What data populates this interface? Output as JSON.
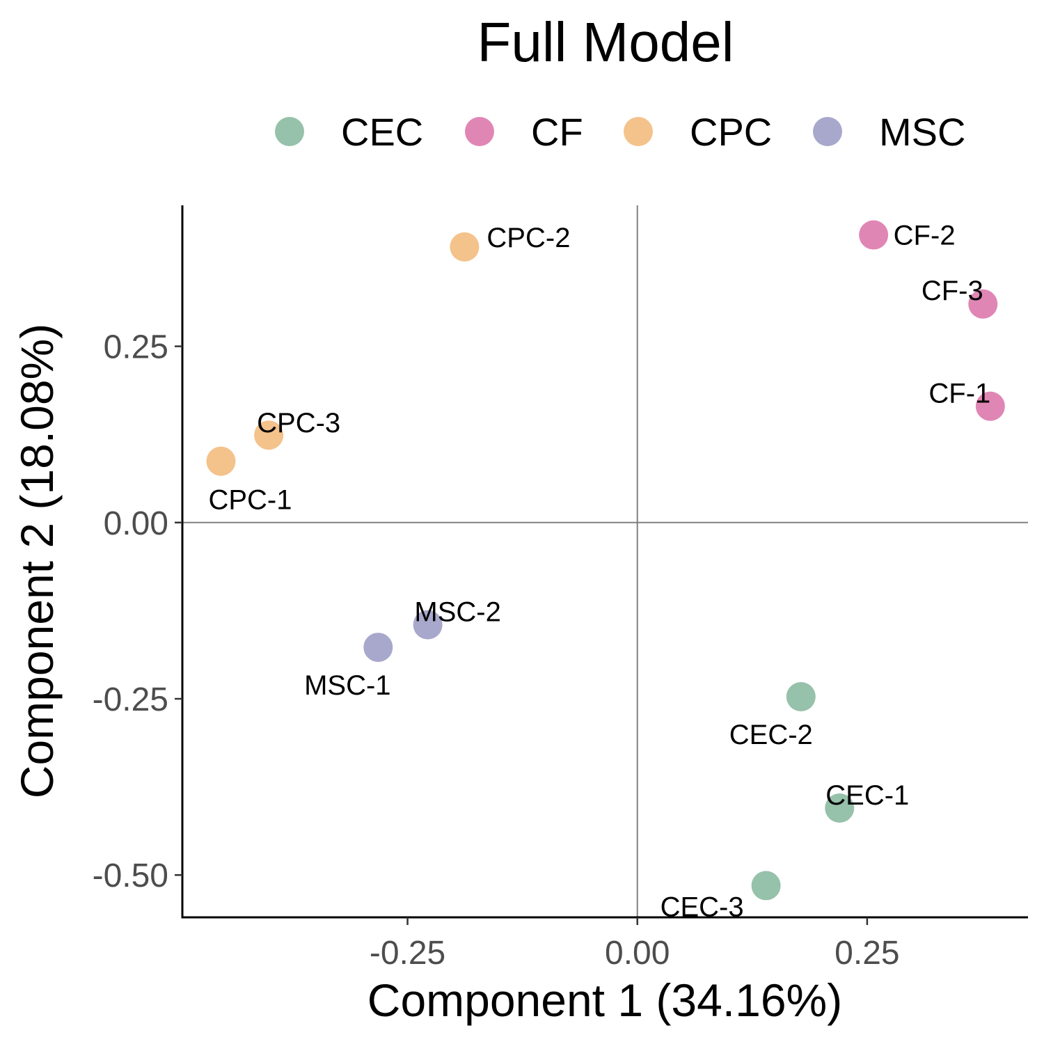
{
  "chart_data": {
    "type": "scatter",
    "title": "Full Model",
    "xlabel": "Component 1 (34.16%)",
    "ylabel": "Component 2 (18.08%)",
    "xlim": [
      -0.495,
      0.425
    ],
    "ylim": [
      -0.56,
      0.45
    ],
    "xticks": [
      {
        "value": -0.25,
        "label": "-0.25"
      },
      {
        "value": 0.0,
        "label": "0.00"
      },
      {
        "value": 0.25,
        "label": "0.25"
      }
    ],
    "yticks": [
      {
        "value": 0.25,
        "label": "0.25"
      },
      {
        "value": 0.0,
        "label": "0.00"
      },
      {
        "value": -0.25,
        "label": "-0.25"
      },
      {
        "value": -0.5,
        "label": "-0.50"
      }
    ],
    "reference_lines": {
      "x": 0,
      "y": 0,
      "color": "#808080"
    },
    "grid": false,
    "legend_position": "top",
    "series": [
      {
        "name": "CEC",
        "color": "#96C1AA",
        "points": [
          {
            "x": 0.22,
            "y": -0.405,
            "label": "CEC-1"
          },
          {
            "x": 0.178,
            "y": -0.247,
            "label": "CEC-2"
          },
          {
            "x": 0.14,
            "y": -0.515,
            "label": "CEC-3"
          }
        ]
      },
      {
        "name": "CF",
        "color": "#E086B5",
        "points": [
          {
            "x": 0.384,
            "y": 0.165,
            "label": "CF-1"
          },
          {
            "x": 0.257,
            "y": 0.408,
            "label": "CF-2"
          },
          {
            "x": 0.376,
            "y": 0.31,
            "label": "CF-3"
          }
        ]
      },
      {
        "name": "CPC",
        "color": "#F4C28B",
        "points": [
          {
            "x": -0.453,
            "y": 0.087,
            "label": "CPC-1"
          },
          {
            "x": -0.188,
            "y": 0.391,
            "label": "CPC-2"
          },
          {
            "x": -0.401,
            "y": 0.124,
            "label": "CPC-3"
          }
        ]
      },
      {
        "name": "MSC",
        "color": "#A8A8CC",
        "points": [
          {
            "x": -0.282,
            "y": -0.177,
            "label": "MSC-1"
          },
          {
            "x": -0.228,
            "y": -0.145,
            "label": "MSC-2"
          }
        ]
      }
    ]
  }
}
